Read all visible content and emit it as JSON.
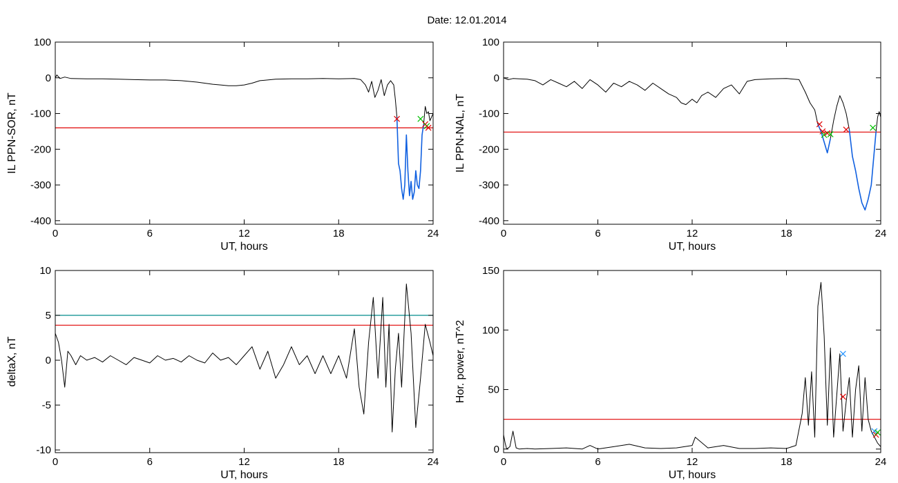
{
  "figure": {
    "title": "Date:  12.01.2014"
  },
  "colors": {
    "data_line": "#000000",
    "threshold_red": "#e00000",
    "threshold_teal": "#008b8b",
    "highlight_blue": "#1060e0",
    "marker_red": "#e00000",
    "marker_green": "#00c000",
    "marker_blue": "#1e90ff"
  },
  "chart_data": [
    {
      "type": "line",
      "xlabel": "UT, hours",
      "ylabel": "IL PPN-SOR, nT",
      "xlim": [
        0,
        24
      ],
      "ylim": [
        -410,
        100
      ],
      "xticks": [
        0,
        6,
        12,
        18,
        24
      ],
      "xtick_labels": [
        "0",
        "6",
        "12",
        "18",
        "24"
      ],
      "yticks": [
        -400,
        -300,
        -200,
        -100,
        0,
        100
      ],
      "ytick_labels": [
        "-400",
        "-300",
        "-200",
        "-100",
        "0",
        "100"
      ],
      "grid": false,
      "series": [
        {
          "x": [
            0,
            0.1,
            0.3,
            0.6,
            1,
            2,
            3,
            4,
            5,
            6,
            7,
            8,
            9,
            10,
            10.5,
            11,
            11.5,
            12,
            12.5,
            13,
            14,
            15,
            16,
            17,
            18,
            19,
            19.4,
            19.7,
            19.9,
            20.1,
            20.3,
            20.5,
            20.7,
            20.9,
            21.1,
            21.3,
            21.5,
            21.6,
            21.7
          ],
          "y": [
            0,
            8,
            -2,
            2,
            -2,
            -3,
            -3,
            -4,
            -5,
            -6,
            -6,
            -8,
            -12,
            -18,
            -20,
            -22,
            -22,
            -20,
            -15,
            -8,
            -4,
            -3,
            -3,
            -2,
            -3,
            -2,
            -5,
            -20,
            -40,
            -10,
            -55,
            -35,
            -5,
            -50,
            -20,
            -8,
            -20,
            -60,
            -110
          ]
        }
      ],
      "highlight_series": {
        "color": "blue",
        "x": [
          21.7,
          21.8,
          21.9,
          22.0,
          22.1,
          22.2,
          22.3,
          22.4,
          22.5,
          22.6,
          22.7,
          22.8,
          22.9,
          23.0,
          23.1,
          23.2,
          23.3,
          23.4
        ],
        "y": [
          -110,
          -240,
          -260,
          -310,
          -340,
          -300,
          -160,
          -260,
          -330,
          -290,
          -340,
          -320,
          -260,
          -300,
          -310,
          -260,
          -160,
          -130
        ]
      },
      "tail_series": {
        "x": [
          23.4,
          23.5,
          23.6,
          23.7,
          23.8,
          23.9,
          24.0
        ],
        "y": [
          -130,
          -80,
          -100,
          -95,
          -120,
          -110,
          -100
        ]
      },
      "thresholds": [
        {
          "y": -140,
          "color": "red"
        }
      ],
      "markers": [
        {
          "x": 21.7,
          "y": -115,
          "color": "red"
        },
        {
          "x": 23.2,
          "y": -115,
          "color": "green"
        },
        {
          "x": 23.5,
          "y": -130,
          "color": "red"
        },
        {
          "x": 23.6,
          "y": -135,
          "color": "green"
        },
        {
          "x": 23.7,
          "y": -140,
          "color": "red"
        }
      ]
    },
    {
      "type": "line",
      "xlabel": "UT, hours",
      "ylabel": "IL PPN-NAL, nT",
      "xlim": [
        0,
        24
      ],
      "ylim": [
        -410,
        100
      ],
      "xticks": [
        0,
        6,
        12,
        18,
        24
      ],
      "xtick_labels": [
        "0",
        "6",
        "12",
        "18",
        "24"
      ],
      "yticks": [
        -400,
        -300,
        -200,
        -100,
        0,
        100
      ],
      "ytick_labels": [
        "-400",
        "-300",
        "-200",
        "-100",
        "0",
        "100"
      ],
      "grid": false,
      "series": [
        {
          "x": [
            0,
            0.3,
            0.6,
            1,
            1.5,
            2,
            2.5,
            3,
            3.5,
            4,
            4.5,
            5,
            5.5,
            6,
            6.5,
            7,
            7.5,
            8,
            8.5,
            9,
            9.5,
            10,
            10.5,
            11,
            11.3,
            11.6,
            12,
            12.3,
            12.6,
            13,
            13.5,
            14,
            14.5,
            15,
            15.5,
            16,
            17,
            18,
            18.8,
            19.2,
            19.5,
            19.8,
            20.0
          ],
          "y": [
            0,
            -5,
            -2,
            -3,
            -4,
            -8,
            -20,
            -5,
            -15,
            -25,
            -10,
            -30,
            -5,
            -20,
            -40,
            -15,
            -25,
            -10,
            -20,
            -35,
            -15,
            -30,
            -45,
            -55,
            -70,
            -75,
            -60,
            -70,
            -50,
            -40,
            -55,
            -30,
            -20,
            -45,
            -10,
            -5,
            -3,
            -2,
            -5,
            -40,
            -70,
            -90,
            -130
          ]
        }
      ],
      "highlight_series": {
        "color": "blue",
        "x": [
          20.0,
          20.2,
          20.4,
          20.6,
          20.8
        ],
        "y": [
          -130,
          -150,
          -180,
          -210,
          -170
        ]
      },
      "mid_series": {
        "x": [
          20.8,
          21.0,
          21.2,
          21.4,
          21.6,
          21.8,
          22.0
        ],
        "y": [
          -170,
          -120,
          -80,
          -50,
          -70,
          -100,
          -145
        ]
      },
      "highlight_series_2": {
        "color": "blue",
        "x": [
          22.0,
          22.2,
          22.4,
          22.6,
          22.8,
          23.0,
          23.2,
          23.4,
          23.5,
          23.6,
          23.7
        ],
        "y": [
          -145,
          -220,
          -260,
          -310,
          -350,
          -370,
          -340,
          -300,
          -250,
          -200,
          -150
        ]
      },
      "tail_series": {
        "x": [
          23.7,
          23.8,
          23.9,
          24.0
        ],
        "y": [
          -150,
          -110,
          -95,
          -110
        ]
      },
      "thresholds": [
        {
          "y": -152,
          "color": "red"
        }
      ],
      "markers": [
        {
          "x": 20.1,
          "y": -130,
          "color": "red"
        },
        {
          "x": 20.3,
          "y": -150,
          "color": "red"
        },
        {
          "x": 20.4,
          "y": -160,
          "color": "green"
        },
        {
          "x": 20.6,
          "y": -155,
          "color": "red"
        },
        {
          "x": 20.8,
          "y": -158,
          "color": "green"
        },
        {
          "x": 21.8,
          "y": -145,
          "color": "red"
        },
        {
          "x": 23.5,
          "y": -140,
          "color": "green"
        }
      ]
    },
    {
      "type": "line",
      "xlabel": "UT, hours",
      "ylabel": "deltaX, nT",
      "xlim": [
        0,
        24
      ],
      "ylim": [
        -10.3,
        10
      ],
      "xticks": [
        0,
        6,
        12,
        18,
        24
      ],
      "xtick_labels": [
        "0",
        "6",
        "12",
        "18",
        "24"
      ],
      "yticks": [
        -10,
        -5,
        0,
        5,
        10
      ],
      "ytick_labels": [
        "-10",
        "-5",
        "0",
        "5",
        "10"
      ],
      "grid": false,
      "series": [
        {
          "x": [
            0,
            0.2,
            0.4,
            0.6,
            0.8,
            1.0,
            1.3,
            1.6,
            2,
            2.5,
            3,
            3.5,
            4,
            4.5,
            5,
            5.5,
            6,
            6.5,
            7,
            7.5,
            8,
            8.5,
            9,
            9.5,
            10,
            10.5,
            11,
            11.5,
            12,
            12.5,
            13,
            13.5,
            14,
            14.5,
            15,
            15.5,
            16,
            16.5,
            17,
            17.5,
            18,
            18.5,
            19,
            19.3,
            19.6,
            19.9,
            20.2,
            20.5,
            20.8,
            21.0,
            21.2,
            21.4,
            21.6,
            21.8,
            22.0,
            22.3,
            22.6,
            22.9,
            23.2,
            23.5,
            23.8,
            24.0
          ],
          "y": [
            3,
            2,
            0,
            -3,
            1,
            0.5,
            -0.5,
            0.5,
            0,
            0.3,
            -0.2,
            0.5,
            0,
            -0.5,
            0.3,
            0,
            -0.3,
            0.5,
            0,
            0.2,
            -0.2,
            0.5,
            0,
            -0.3,
            0.8,
            0,
            0.3,
            -0.5,
            0.5,
            1.5,
            -1,
            1,
            -2,
            -0.5,
            1.5,
            -0.5,
            0.5,
            -1.5,
            0.5,
            -1.5,
            0.5,
            -2,
            3.5,
            -3,
            -6,
            2,
            7,
            -2,
            7,
            -3,
            4,
            -8,
            -1,
            3,
            -3,
            8.5,
            3,
            -7.5,
            -2,
            4,
            2,
            0.5
          ]
        }
      ],
      "thresholds": [
        {
          "y": 5,
          "color": "teal"
        },
        {
          "y": 3.9,
          "color": "red"
        }
      ],
      "markers": []
    },
    {
      "type": "line",
      "xlabel": "UT, hours",
      "ylabel": "Hor. power, nT^2",
      "xlim": [
        0,
        24
      ],
      "ylim": [
        -3,
        150
      ],
      "xticks": [
        0,
        6,
        12,
        18,
        24
      ],
      "xtick_labels": [
        "0",
        "6",
        "12",
        "18",
        "24"
      ],
      "yticks": [
        0,
        50,
        100,
        150
      ],
      "ytick_labels": [
        "0",
        "50",
        "100",
        "150"
      ],
      "grid": false,
      "series": [
        {
          "x": [
            0,
            0.1,
            0.2,
            0.4,
            0.6,
            0.8,
            1.0,
            1.5,
            2,
            3,
            4,
            5,
            5.5,
            6,
            7,
            8,
            9,
            10,
            11,
            12,
            12.2,
            13,
            14,
            15,
            16,
            17,
            18,
            18.6,
            19.0,
            19.2,
            19.4,
            19.6,
            19.8,
            20.0,
            20.2,
            20.4,
            20.6,
            20.8,
            21.0,
            21.2,
            21.4,
            21.6,
            21.8,
            22.0,
            22.2,
            22.4,
            22.6,
            22.8,
            23.0,
            23.2,
            23.4,
            23.6,
            23.8,
            24.0
          ],
          "y": [
            12,
            5,
            0,
            2,
            15,
            1,
            0,
            0.5,
            0,
            0.5,
            1,
            0,
            3,
            0,
            2,
            4,
            1,
            0.5,
            1,
            3,
            10,
            1,
            3,
            0.5,
            0.5,
            1,
            0.5,
            3,
            30,
            60,
            20,
            65,
            10,
            120,
            140,
            95,
            20,
            85,
            10,
            45,
            80,
            15,
            40,
            60,
            10,
            50,
            70,
            15,
            60,
            25,
            15,
            10,
            5,
            2
          ]
        }
      ],
      "thresholds": [
        {
          "y": 25,
          "color": "red"
        }
      ],
      "markers": [
        {
          "x": 21.6,
          "y": 80,
          "color": "blue"
        },
        {
          "x": 21.6,
          "y": 44,
          "color": "red"
        },
        {
          "x": 23.6,
          "y": 15,
          "color": "blue"
        },
        {
          "x": 23.7,
          "y": 12,
          "color": "red"
        },
        {
          "x": 23.8,
          "y": 14,
          "color": "green"
        }
      ]
    }
  ]
}
